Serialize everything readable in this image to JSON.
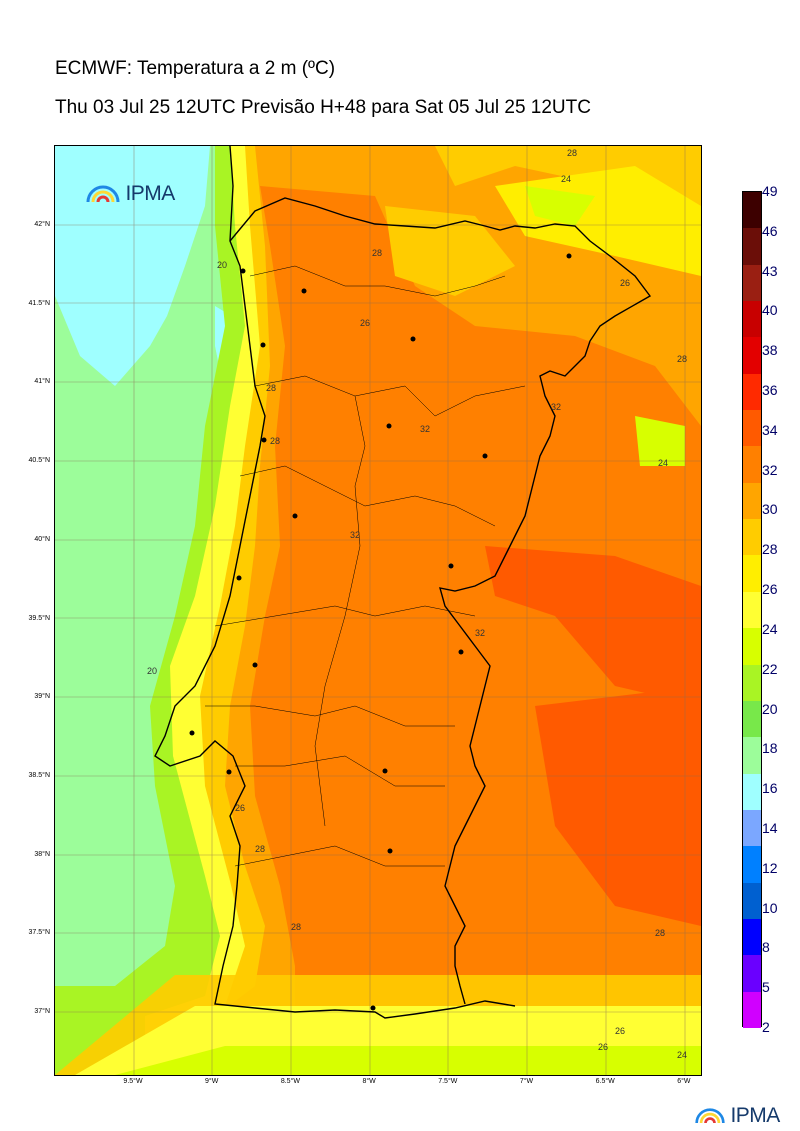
{
  "title_line1": "ECMWF: Temperatura a 2 m (ºC)",
  "title_line2": "Thu 03 Jul 25 12UTC Previsão H+48 para Sat 05 Jul 25 12UTC",
  "logo_text": "IPMA",
  "y_axis_labels": [
    "42°N",
    "41.5°N",
    "41°N",
    "40.5°N",
    "40°N",
    "39.5°N",
    "39°N",
    "38.5°N",
    "38°N",
    "37.5°N",
    "37°N"
  ],
  "x_axis_labels": [
    "9.5°W",
    "9°W",
    "8.5°W",
    "8°W",
    "7.5°W",
    "7°W",
    "6.5°W",
    "6°W"
  ],
  "colorbar": {
    "labels": [
      "49",
      "46",
      "43",
      "40",
      "38",
      "36",
      "34",
      "32",
      "30",
      "28",
      "26",
      "24",
      "22",
      "20",
      "18",
      "16",
      "14",
      "12",
      "10",
      "8",
      "5",
      "2"
    ],
    "colors": [
      "#3d0000",
      "#6b0e08",
      "#9a1f12",
      "#c80000",
      "#e30000",
      "#ff2a00",
      "#ff5a00",
      "#ff8000",
      "#ffa500",
      "#ffcc00",
      "#ffee00",
      "#ffff33",
      "#d7ff00",
      "#a9f424",
      "#78e84a",
      "#9cfd9a",
      "#9fffff",
      "#7ba7ff",
      "#0080ff",
      "#0060d0",
      "#0000ff",
      "#6a00ff",
      "#d000ff"
    ]
  },
  "contour_labels": [
    "28",
    "24",
    "26",
    "28",
    "24",
    "20",
    "28",
    "26",
    "32",
    "32",
    "32",
    "32",
    "28",
    "28",
    "26",
    "20",
    "28",
    "28",
    "26",
    "26",
    "24",
    "28"
  ],
  "colors": {
    "sea": "#9cfd9a",
    "cold_sea": "#9fffff",
    "t20": "#a9f424",
    "t24": "#ffff33",
    "t28": "#ffcc00",
    "t30": "#ffa500",
    "t32": "#ff8000",
    "t34": "#ff5a00",
    "t26": "#ffee00"
  }
}
